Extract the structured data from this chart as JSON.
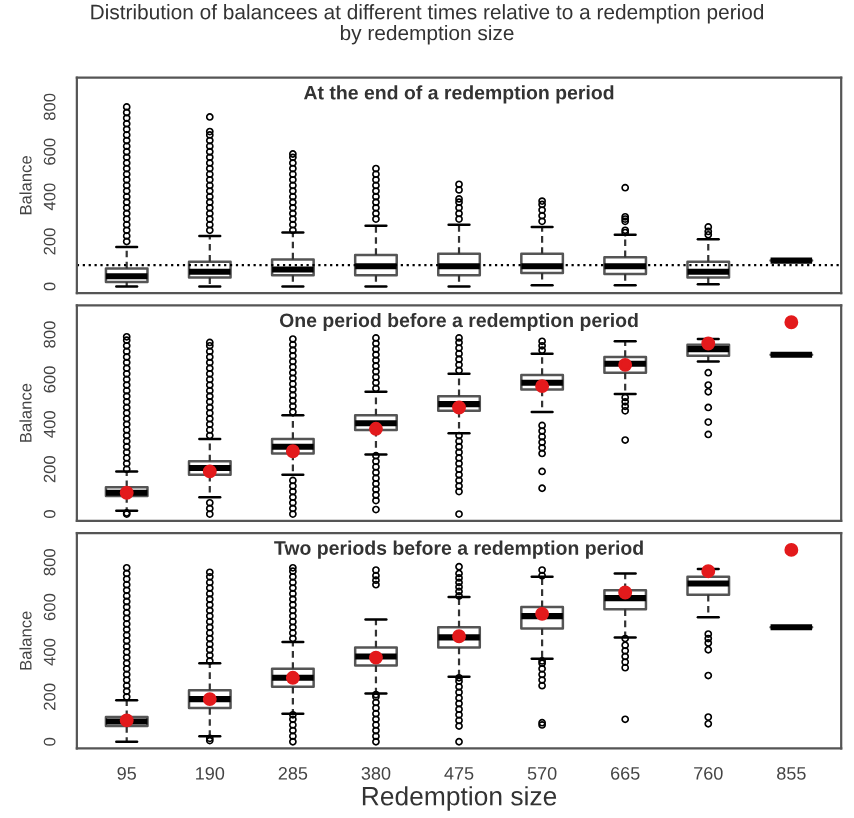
{
  "chart_data": [
    {
      "type": "box",
      "title": "Distribution of balancees at different times relative to a redemption period\nby redemption size",
      "annotations": [
        "At the end of a redemption period"
      ],
      "ylabel": "Balance",
      "categories": [
        "95",
        "190",
        "285",
        "380",
        "475",
        "570",
        "665",
        "760",
        "855"
      ],
      "ylim": [
        -30,
        930
      ],
      "yticks": [
        0,
        200,
        400,
        600,
        800
      ],
      "tick_labels": "y",
      "ref_lines": [
        {
          "axis": "y",
          "value": 95,
          "line_style": "dotted"
        }
      ],
      "boxes": [
        {
          "low": 0,
          "q1": 20,
          "median": 45,
          "q3": 80,
          "high": 175,
          "outliers": [
            200,
            225,
            250,
            275,
            300,
            325,
            350,
            375,
            400,
            425,
            450,
            475,
            500,
            525,
            550,
            575,
            600,
            625,
            650,
            675,
            700,
            725,
            750,
            775,
            800
          ]
        },
        {
          "low": 0,
          "q1": 40,
          "median": 65,
          "q3": 110,
          "high": 225,
          "outliers": [
            250,
            275,
            300,
            325,
            350,
            375,
            400,
            425,
            450,
            475,
            500,
            525,
            550,
            575,
            600,
            625,
            650,
            675,
            690,
            755
          ]
        },
        {
          "low": 0,
          "q1": 50,
          "median": 75,
          "q3": 120,
          "high": 240,
          "outliers": [
            250,
            275,
            300,
            325,
            350,
            375,
            400,
            425,
            450,
            475,
            500,
            525,
            550,
            575,
            590
          ]
        },
        {
          "low": 0,
          "q1": 50,
          "median": 90,
          "q3": 140,
          "high": 270,
          "outliers": [
            300,
            325,
            350,
            375,
            400,
            425,
            450,
            475,
            500,
            525
          ]
        },
        {
          "low": 0,
          "q1": 50,
          "median": 90,
          "q3": 145,
          "high": 275,
          "outliers": [
            300,
            325,
            350,
            375,
            390,
            430,
            455
          ]
        },
        {
          "low": 5,
          "q1": 60,
          "median": 90,
          "q3": 145,
          "high": 265,
          "outliers": [
            290,
            315,
            340,
            365,
            380
          ]
        },
        {
          "low": 5,
          "q1": 55,
          "median": 90,
          "q3": 130,
          "high": 230,
          "outliers": [
            240,
            250,
            290,
            300,
            310,
            440
          ]
        },
        {
          "low": 10,
          "q1": 40,
          "median": 65,
          "q3": 110,
          "high": 210,
          "outliers": [
            230,
            245,
            265
          ]
        },
        {
          "low": 115,
          "q1": 115,
          "median": 115,
          "q3": 115,
          "high": 115
        }
      ]
    },
    {
      "type": "box",
      "annotations": [
        "One period before a redemption period"
      ],
      "ylabel": "Balance",
      "categories": [
        "95",
        "190",
        "285",
        "380",
        "475",
        "570",
        "665",
        "760",
        "855"
      ],
      "ylim": [
        -30,
        930
      ],
      "yticks": [
        0,
        200,
        400,
        600,
        800
      ],
      "tick_labels": "y",
      "boxes": [
        {
          "low": 15,
          "q1": 80,
          "median": 95,
          "q3": 120,
          "high": 190,
          "mean": 95,
          "outliers": [
            0,
            5,
            200,
            225,
            250,
            275,
            300,
            325,
            350,
            375,
            400,
            425,
            450,
            475,
            500,
            525,
            550,
            575,
            600,
            625,
            650,
            675,
            700,
            725,
            750,
            775,
            790
          ]
        },
        {
          "low": 75,
          "q1": 175,
          "median": 205,
          "q3": 235,
          "high": 335,
          "mean": 190,
          "outliers": [
            0,
            25,
            50,
            350,
            375,
            400,
            425,
            450,
            475,
            500,
            525,
            550,
            575,
            600,
            625,
            650,
            675,
            700,
            725,
            750,
            765
          ]
        },
        {
          "low": 175,
          "q1": 270,
          "median": 300,
          "q3": 335,
          "high": 440,
          "mean": 280,
          "outliers": [
            0,
            25,
            50,
            75,
            100,
            125,
            150,
            455,
            480,
            505,
            530,
            555,
            580,
            605,
            630,
            655,
            680,
            705,
            730,
            755,
            780
          ]
        },
        {
          "low": 265,
          "q1": 375,
          "median": 405,
          "q3": 440,
          "high": 545,
          "mean": 380,
          "outliers": [
            20,
            60,
            85,
            110,
            135,
            160,
            185,
            210,
            235,
            260,
            560,
            585,
            610,
            635,
            660,
            685,
            710,
            735,
            760,
            785
          ]
        },
        {
          "low": 360,
          "q1": 460,
          "median": 490,
          "q3": 525,
          "high": 625,
          "mean": 475,
          "outliers": [
            0,
            100,
            125,
            150,
            175,
            200,
            225,
            250,
            275,
            300,
            325,
            350,
            640,
            665,
            690,
            715,
            740,
            765,
            785
          ]
        },
        {
          "low": 455,
          "q1": 555,
          "median": 585,
          "q3": 620,
          "high": 715,
          "mean": 570,
          "outliers": [
            115,
            190,
            270,
            295,
            320,
            345,
            370,
            395,
            730,
            750,
            770
          ]
        },
        {
          "low": 535,
          "q1": 630,
          "median": 670,
          "q3": 700,
          "high": 770,
          "mean": 665,
          "outliers": [
            330,
            460,
            480,
            500,
            520
          ]
        },
        {
          "low": 680,
          "q1": 705,
          "median": 735,
          "q3": 755,
          "high": 780,
          "mean": 760,
          "outliers": [
            355,
            410,
            475,
            545,
            575,
            630
          ]
        },
        {
          "low": 710,
          "q1": 710,
          "median": 710,
          "q3": 710,
          "high": 710,
          "mean": 855
        }
      ]
    },
    {
      "type": "box",
      "annotations": [
        "Two periods before a redemption period"
      ],
      "ylabel": "Balance",
      "xlabel": "Redemption size",
      "categories": [
        "95",
        "190",
        "285",
        "380",
        "475",
        "570",
        "665",
        "760",
        "855"
      ],
      "ylim": [
        -30,
        930
      ],
      "yticks": [
        0,
        200,
        400,
        600,
        800
      ],
      "boxes": [
        {
          "low": 0,
          "q1": 70,
          "median": 90,
          "q3": 110,
          "high": 185,
          "mean": 95,
          "outliers": [
            200,
            225,
            250,
            275,
            300,
            325,
            350,
            375,
            400,
            425,
            450,
            475,
            500,
            525,
            550,
            575,
            600,
            625,
            650,
            675,
            700,
            725,
            750,
            775
          ]
        },
        {
          "low": 25,
          "q1": 150,
          "median": 190,
          "q3": 230,
          "high": 350,
          "mean": 190,
          "outliers": [
            5,
            15,
            360,
            385,
            410,
            435,
            460,
            485,
            510,
            535,
            560,
            585,
            610,
            635,
            660,
            685,
            710,
            735,
            755
          ]
        },
        {
          "low": 125,
          "q1": 245,
          "median": 285,
          "q3": 325,
          "high": 445,
          "mean": 285,
          "outliers": [
            0,
            25,
            50,
            75,
            100,
            120,
            460,
            485,
            510,
            535,
            560,
            585,
            610,
            635,
            660,
            685,
            710,
            735,
            760,
            775
          ]
        },
        {
          "low": 215,
          "q1": 340,
          "median": 380,
          "q3": 420,
          "high": 545,
          "mean": 375,
          "outliers": [
            0,
            25,
            50,
            75,
            100,
            125,
            150,
            175,
            200,
            210,
            700,
            720,
            740,
            765
          ]
        },
        {
          "low": 290,
          "q1": 420,
          "median": 465,
          "q3": 510,
          "high": 645,
          "mean": 470,
          "outliers": [
            0,
            70,
            95,
            120,
            145,
            170,
            195,
            220,
            245,
            270,
            285,
            650,
            670,
            690,
            710,
            730,
            750,
            780
          ]
        },
        {
          "low": 370,
          "q1": 505,
          "median": 560,
          "q3": 600,
          "high": 735,
          "mean": 570,
          "outliers": [
            75,
            85,
            250,
            275,
            300,
            325,
            350,
            360,
            740,
            765
          ]
        },
        {
          "low": 465,
          "q1": 590,
          "median": 640,
          "q3": 675,
          "high": 750,
          "mean": 665,
          "outliers": [
            100,
            330,
            355,
            380,
            405,
            430,
            460
          ]
        },
        {
          "low": 555,
          "q1": 655,
          "median": 705,
          "q3": 735,
          "high": 770,
          "mean": 760,
          "outliers": [
            80,
            110,
            295,
            410,
            440,
            460,
            480
          ]
        },
        {
          "low": 510,
          "q1": 510,
          "median": 510,
          "q3": 510,
          "high": 510,
          "mean": 855
        }
      ]
    }
  ]
}
